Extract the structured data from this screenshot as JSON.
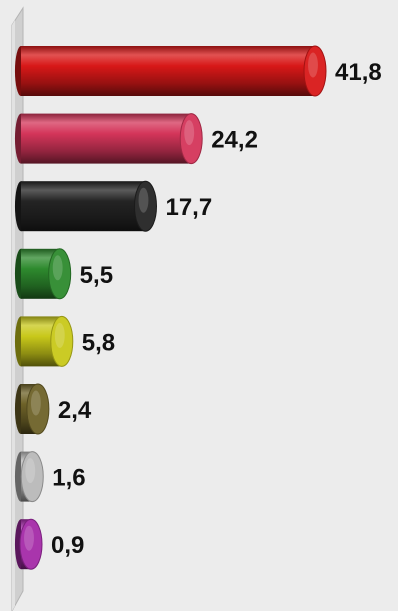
{
  "chart_data": {
    "type": "bar",
    "orientation": "horizontal",
    "style": "3d-cylinder",
    "title": "",
    "xlabel": "",
    "ylabel": "",
    "grid": false,
    "legend": "none",
    "xlim": [
      0,
      45
    ],
    "values": [
      41.8,
      24.2,
      17.7,
      5.5,
      5.8,
      2.4,
      1.6,
      0.9
    ],
    "value_labels": [
      "41,8",
      "24,2",
      "17,7",
      "5,5",
      "5,8",
      "2,4",
      "1,6",
      "0,9"
    ],
    "colors": [
      "#d81818",
      "#d4355a",
      "#242424",
      "#2e8a2e",
      "#c8c81a",
      "#6e6228",
      "#b8b8b8",
      "#a42aa8"
    ],
    "background_color": "#ececec"
  }
}
